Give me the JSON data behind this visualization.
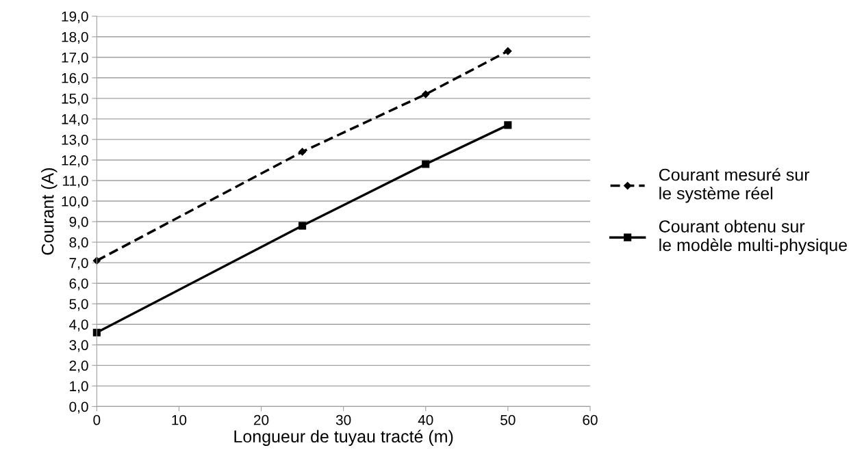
{
  "chart_data": {
    "type": "line",
    "xlabel": "Longueur de tuyau tracté (m)",
    "ylabel": "Courant (A)",
    "x": [
      0,
      25,
      40,
      50
    ],
    "series": [
      {
        "name": "Courant mesuré sur le système réel",
        "color": "#000000",
        "values": [
          7.1,
          12.4,
          15.2,
          17.3
        ],
        "marker": "diamond",
        "line_style": "dashed"
      },
      {
        "name": "Courant obtenu sur le modèle multi-physique",
        "color": "#000000",
        "values": [
          3.6,
          8.8,
          11.8,
          13.7
        ],
        "marker": "square",
        "line_style": "solid"
      }
    ],
    "xlim": [
      0,
      60
    ],
    "xticks": [
      0,
      10,
      20,
      30,
      40,
      50,
      60
    ],
    "ylim": [
      0,
      19
    ],
    "yticks": [
      {
        "value": 0,
        "label": "0,0"
      },
      {
        "value": 1,
        "label": "1,0"
      },
      {
        "value": 2,
        "label": "2,0"
      },
      {
        "value": 3,
        "label": "3,0"
      },
      {
        "value": 4,
        "label": "4,0"
      },
      {
        "value": 5,
        "label": "5,0"
      },
      {
        "value": 6,
        "label": "6,0"
      },
      {
        "value": 7,
        "label": "7,0"
      },
      {
        "value": 8,
        "label": "8,0"
      },
      {
        "value": 9,
        "label": "9,0"
      },
      {
        "value": 10,
        "label": "10,0"
      },
      {
        "value": 11,
        "label": "11,0"
      },
      {
        "value": 12,
        "label": "12,0"
      },
      {
        "value": 13,
        "label": "13,0"
      },
      {
        "value": 14,
        "label": "14,0"
      },
      {
        "value": 15,
        "label": "15,0"
      },
      {
        "value": 16,
        "label": "16,0"
      },
      {
        "value": 17,
        "label": "17,0"
      },
      {
        "value": 18,
        "label": "18,0"
      },
      {
        "value": 19,
        "label": "19,0"
      }
    ],
    "grid": "y",
    "legend": "right"
  }
}
